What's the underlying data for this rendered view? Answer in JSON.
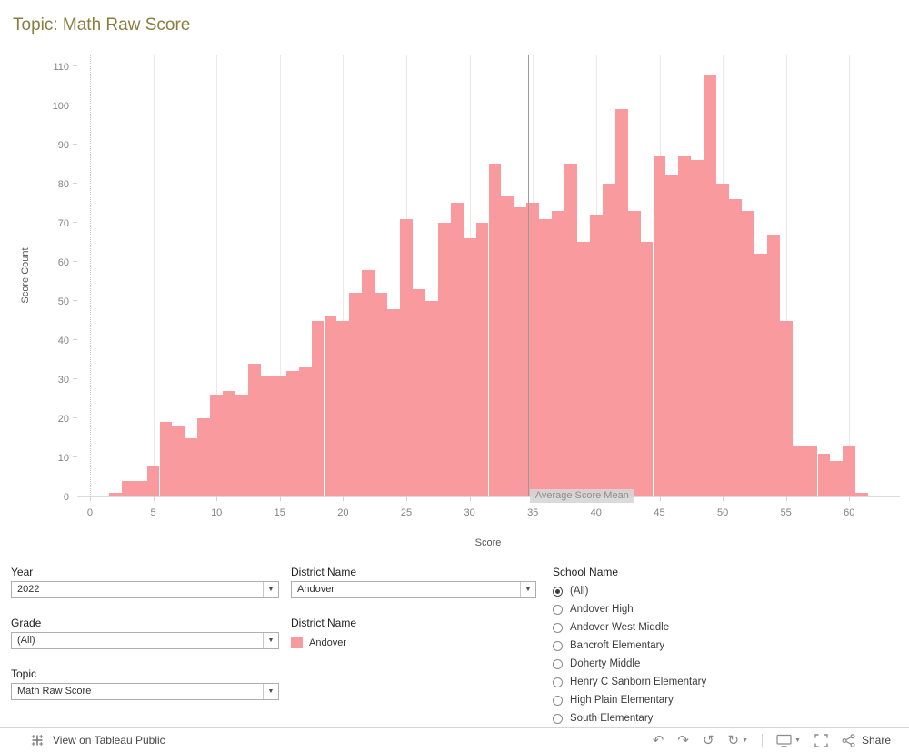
{
  "title": "Topic: Math Raw Score",
  "chart_data": {
    "type": "bar",
    "title": "Topic: Math Raw Score",
    "xlabel": "Score",
    "ylabel": "Score Count",
    "xlim": [
      -1,
      64
    ],
    "ylim": [
      0,
      113
    ],
    "x_ticks": [
      0,
      5,
      10,
      15,
      20,
      25,
      30,
      35,
      40,
      45,
      50,
      55,
      60
    ],
    "y_ticks": [
      0,
      10,
      20,
      30,
      40,
      50,
      60,
      70,
      80,
      90,
      100,
      110
    ],
    "bar_color": "#F99B9E",
    "bin_width": 1,
    "grid": "vertical-only",
    "reference_line": {
      "x": 34.6,
      "label": "Average Score Mean"
    },
    "x": [
      2,
      3,
      4,
      5,
      6,
      7,
      8,
      9,
      10,
      11,
      12,
      13,
      14,
      15,
      16,
      17,
      18,
      19,
      20,
      21,
      22,
      23,
      24,
      25,
      26,
      27,
      28,
      29,
      30,
      31,
      32,
      33,
      34,
      35,
      36,
      37,
      38,
      39,
      40,
      41,
      42,
      43,
      44,
      45,
      46,
      47,
      48,
      49,
      50,
      51,
      52,
      53,
      54,
      55,
      56,
      57,
      58,
      59,
      60,
      61
    ],
    "values": [
      1,
      4,
      4,
      8,
      19,
      18,
      15,
      20,
      26,
      27,
      26,
      34,
      31,
      31,
      32,
      33,
      45,
      46,
      45,
      52,
      58,
      52,
      48,
      71,
      53,
      50,
      70,
      75,
      66,
      70,
      85,
      77,
      74,
      75,
      71,
      73,
      85,
      65,
      72,
      80,
      99,
      73,
      65,
      87,
      82,
      87,
      86,
      108,
      80,
      76,
      73,
      62,
      67,
      45,
      13,
      13,
      11,
      9,
      13,
      1
    ]
  },
  "filters": {
    "year": {
      "label": "Year",
      "value": "2022"
    },
    "grade": {
      "label": "Grade",
      "value": "(All)"
    },
    "topic": {
      "label": "Topic",
      "value": "Math Raw Score"
    },
    "district": {
      "label": "District Name",
      "value": "Andover"
    }
  },
  "legend": {
    "title": "District Name",
    "items": [
      {
        "label": "Andover",
        "color": "#F99B9E"
      }
    ]
  },
  "school_filter": {
    "title": "School Name",
    "options": [
      {
        "label": "(All)",
        "selected": true
      },
      {
        "label": "Andover High",
        "selected": false
      },
      {
        "label": "Andover West Middle",
        "selected": false
      },
      {
        "label": "Bancroft Elementary",
        "selected": false
      },
      {
        "label": "Doherty Middle",
        "selected": false
      },
      {
        "label": "Henry C Sanborn Elementary",
        "selected": false
      },
      {
        "label": "High Plain Elementary",
        "selected": false
      },
      {
        "label": "South Elementary",
        "selected": false
      }
    ]
  },
  "toolbar": {
    "view_on_label": "View on Tableau Public",
    "share_label": "Share"
  },
  "colors": {
    "bar": "#F99B9E",
    "title_text": "#8A7D3F",
    "axis_text": "#838383",
    "reference_line": "#9B9B9B"
  }
}
